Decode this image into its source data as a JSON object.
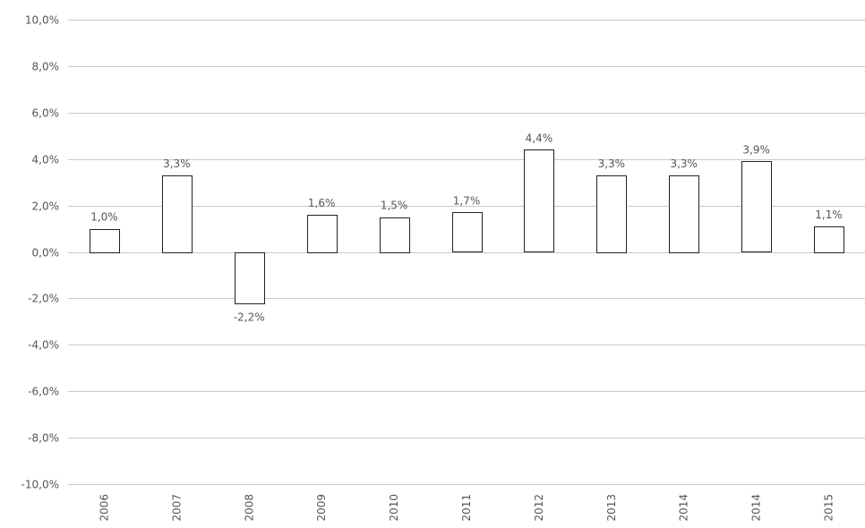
{
  "chart_data": {
    "type": "bar",
    "categories": [
      "2006",
      "2007",
      "2008",
      "2009",
      "2010",
      "2011",
      "2012",
      "2013",
      "2014",
      "2014",
      "2015"
    ],
    "values": [
      1.0,
      3.3,
      -2.2,
      1.6,
      1.5,
      1.7,
      4.4,
      3.3,
      3.3,
      3.9,
      1.1
    ],
    "data_labels": [
      "1,0%",
      "3,3%",
      "-2,2%",
      "1,6%",
      "1,5%",
      "1,7%",
      "4,4%",
      "3,3%",
      "3,3%",
      "3,9%",
      "1,1%"
    ],
    "ylim": [
      -10,
      10
    ],
    "yticks": [
      10,
      8,
      6,
      4,
      2,
      0,
      -2,
      -4,
      -6,
      -8,
      -10
    ],
    "ytick_labels": [
      "10,0%",
      "8,0%",
      "6,0%",
      "4,0%",
      "2,0%",
      "0,0%",
      "-2,0%",
      "-4,0%",
      "-6,0%",
      "-8,0%",
      "-10,0%"
    ],
    "grid": true,
    "title": "",
    "xlabel": "",
    "ylabel": ""
  }
}
